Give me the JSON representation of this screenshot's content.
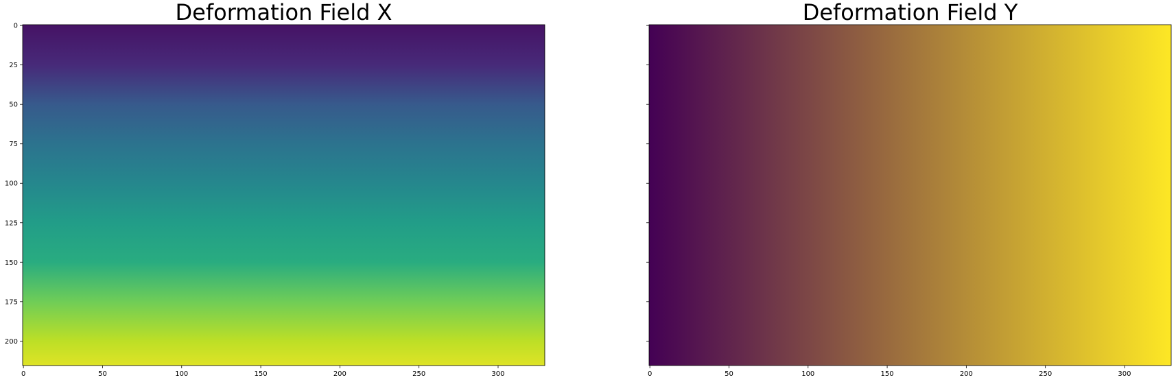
{
  "chart_data": [
    {
      "type": "heatmap",
      "title": "Deformation Field X",
      "colormap": "viridis",
      "gradient_direction": "vertical",
      "xlim": [
        -0.5,
        329.5
      ],
      "ylim": [
        215.5,
        -0.5
      ],
      "x_ticks": [
        0,
        50,
        100,
        150,
        200,
        250,
        300
      ],
      "y_ticks": [
        0,
        25,
        50,
        75,
        100,
        125,
        150,
        175,
        200
      ],
      "y_tick_labels_shown": true,
      "profile": [
        {
          "y": 0,
          "value": 0.05
        },
        {
          "y": 25,
          "value": 0.12
        },
        {
          "y": 50,
          "value": 0.28
        },
        {
          "y": 75,
          "value": 0.38
        },
        {
          "y": 100,
          "value": 0.46
        },
        {
          "y": 125,
          "value": 0.55
        },
        {
          "y": 150,
          "value": 0.62
        },
        {
          "y": 175,
          "value": 0.78
        },
        {
          "y": 200,
          "value": 0.9
        },
        {
          "y": 215,
          "value": 0.95
        }
      ]
    },
    {
      "type": "heatmap",
      "title": "Deformation Field Y",
      "colormap": "viridis",
      "gradient_direction": "horizontal",
      "xlim": [
        -0.5,
        329.5
      ],
      "ylim": [
        215.5,
        -0.5
      ],
      "x_ticks": [
        0,
        50,
        100,
        150,
        200,
        250,
        300
      ],
      "y_ticks": [
        0,
        25,
        50,
        75,
        100,
        125,
        150,
        175,
        200
      ],
      "y_tick_labels_shown": false,
      "profile": [
        {
          "x": 0,
          "value": 0.0
        },
        {
          "x": 329,
          "value": 1.0
        }
      ]
    }
  ]
}
